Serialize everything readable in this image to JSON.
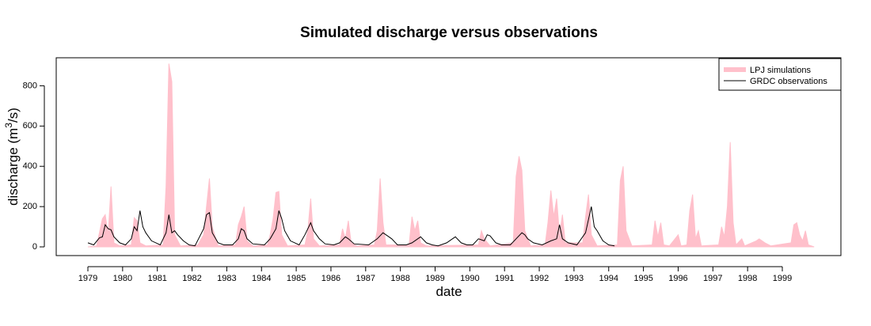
{
  "chart_data": {
    "type": "area",
    "title": "Simulated discharge versus observations",
    "xlabel": "date",
    "ylabel": "discharge (m³/s)",
    "xlim": [
      "1979-01",
      "1999-12"
    ],
    "ylim": [
      0,
      900
    ],
    "yticks": [
      0,
      200,
      400,
      600,
      800
    ],
    "xticks": [
      "1979",
      "1980",
      "1981",
      "1982",
      "1983",
      "1984",
      "1985",
      "1986",
      "1987",
      "1988",
      "1989",
      "1990",
      "1991",
      "1992",
      "1993",
      "1994",
      "1995",
      "1996",
      "1997",
      "1998",
      "1999"
    ],
    "grid": false,
    "legend_position": "top-right",
    "colors": {
      "simulations": "#ffc0cb",
      "observations": "#000000"
    },
    "series": [
      {
        "name": "LPJ simulations",
        "style": "filled area",
        "points": [
          [
            "1979-01",
            0
          ],
          [
            "1979-04",
            5
          ],
          [
            "1979-06",
            140
          ],
          [
            "1979-07",
            160
          ],
          [
            "1979-08",
            60
          ],
          [
            "1979-09",
            300
          ],
          [
            "1979-10",
            20
          ],
          [
            "1979-12",
            5
          ],
          [
            "1980-04",
            10
          ],
          [
            "1980-05",
            145
          ],
          [
            "1980-06",
            130
          ],
          [
            "1980-07",
            20
          ],
          [
            "1980-09",
            5
          ],
          [
            "1981-03",
            10
          ],
          [
            "1981-04",
            300
          ],
          [
            "1981-05",
            910
          ],
          [
            "1981-06",
            820
          ],
          [
            "1981-07",
            60
          ],
          [
            "1981-09",
            5
          ],
          [
            "1982-03",
            10
          ],
          [
            "1982-05",
            60
          ],
          [
            "1982-06",
            200
          ],
          [
            "1982-07",
            340
          ],
          [
            "1982-08",
            100
          ],
          [
            "1982-10",
            5
          ],
          [
            "1983-04",
            10
          ],
          [
            "1983-05",
            110
          ],
          [
            "1983-06",
            150
          ],
          [
            "1983-07",
            200
          ],
          [
            "1983-08",
            30
          ],
          [
            "1983-10",
            5
          ],
          [
            "1984-03",
            10
          ],
          [
            "1984-04",
            60
          ],
          [
            "1984-05",
            140
          ],
          [
            "1984-06",
            270
          ],
          [
            "1984-07",
            275
          ],
          [
            "1984-08",
            60
          ],
          [
            "1984-10",
            5
          ],
          [
            "1985-04",
            10
          ],
          [
            "1985-05",
            80
          ],
          [
            "1985-06",
            240
          ],
          [
            "1985-07",
            40
          ],
          [
            "1985-09",
            5
          ],
          [
            "1986-04",
            10
          ],
          [
            "1986-05",
            90
          ],
          [
            "1986-06",
            40
          ],
          [
            "1986-07",
            130
          ],
          [
            "1986-08",
            20
          ],
          [
            "1986-10",
            5
          ],
          [
            "1987-04",
            10
          ],
          [
            "1987-05",
            80
          ],
          [
            "1987-06",
            340
          ],
          [
            "1987-07",
            120
          ],
          [
            "1987-08",
            10
          ],
          [
            "1988-04",
            10
          ],
          [
            "1988-05",
            150
          ],
          [
            "1988-06",
            80
          ],
          [
            "1988-07",
            130
          ],
          [
            "1988-08",
            20
          ],
          [
            "1988-10",
            5
          ],
          [
            "1990-04",
            10
          ],
          [
            "1990-05",
            80
          ],
          [
            "1990-06",
            40
          ],
          [
            "1990-08",
            5
          ],
          [
            "1991-04",
            20
          ],
          [
            "1991-05",
            350
          ],
          [
            "1991-06",
            450
          ],
          [
            "1991-07",
            380
          ],
          [
            "1991-08",
            80
          ],
          [
            "1991-10",
            5
          ],
          [
            "1992-03",
            10
          ],
          [
            "1992-04",
            120
          ],
          [
            "1992-05",
            280
          ],
          [
            "1992-06",
            150
          ],
          [
            "1992-07",
            240
          ],
          [
            "1992-08",
            60
          ],
          [
            "1992-09",
            160
          ],
          [
            "1992-10",
            20
          ],
          [
            "1993-04",
            20
          ],
          [
            "1993-05",
            150
          ],
          [
            "1993-06",
            260
          ],
          [
            "1993-07",
            60
          ],
          [
            "1993-09",
            5
          ],
          [
            "1994-04",
            10
          ],
          [
            "1994-05",
            330
          ],
          [
            "1994-06",
            400
          ],
          [
            "1994-07",
            80
          ],
          [
            "1994-09",
            5
          ],
          [
            "1995-04",
            10
          ],
          [
            "1995-05",
            130
          ],
          [
            "1995-06",
            50
          ],
          [
            "1995-07",
            120
          ],
          [
            "1995-08",
            10
          ],
          [
            "1995-10",
            5
          ],
          [
            "1996-01",
            60
          ],
          [
            "1996-02",
            5
          ],
          [
            "1996-04",
            10
          ],
          [
            "1996-05",
            180
          ],
          [
            "1996-06",
            260
          ],
          [
            "1996-07",
            40
          ],
          [
            "1996-08",
            80
          ],
          [
            "1996-09",
            5
          ],
          [
            "1997-03",
            10
          ],
          [
            "1997-04",
            100
          ],
          [
            "1997-05",
            50
          ],
          [
            "1997-06",
            200
          ],
          [
            "1997-07",
            520
          ],
          [
            "1997-08",
            120
          ],
          [
            "1997-09",
            10
          ],
          [
            "1997-11",
            40
          ],
          [
            "1997-12",
            5
          ],
          [
            "1998-04",
            30
          ],
          [
            "1998-05",
            40
          ],
          [
            "1998-07",
            20
          ],
          [
            "1998-09",
            5
          ],
          [
            "1999-04",
            20
          ],
          [
            "1999-05",
            110
          ],
          [
            "1999-06",
            120
          ],
          [
            "1999-07",
            60
          ],
          [
            "1999-08",
            30
          ],
          [
            "1999-09",
            80
          ],
          [
            "1999-10",
            10
          ],
          [
            "1999-12",
            0
          ]
        ]
      },
      {
        "name": "GRDC observations",
        "style": "line",
        "points": [
          [
            "1979-01",
            20
          ],
          [
            "1979-03",
            10
          ],
          [
            "1979-05",
            45
          ],
          [
            "1979-06",
            50
          ],
          [
            "1979-07",
            110
          ],
          [
            "1979-08",
            90
          ],
          [
            "1979-09",
            85
          ],
          [
            "1979-10",
            50
          ],
          [
            "1979-12",
            20
          ],
          [
            "1980-02",
            10
          ],
          [
            "1980-04",
            40
          ],
          [
            "1980-05",
            100
          ],
          [
            "1980-06",
            80
          ],
          [
            "1980-07",
            180
          ],
          [
            "1980-08",
            100
          ],
          [
            "1980-09",
            70
          ],
          [
            "1980-11",
            30
          ],
          [
            "1981-02",
            10
          ],
          [
            "1981-04",
            70
          ],
          [
            "1981-05",
            160
          ],
          [
            "1981-06",
            70
          ],
          [
            "1981-07",
            80
          ],
          [
            "1981-08",
            60
          ],
          [
            "1981-10",
            30
          ],
          [
            "1981-12",
            10
          ],
          [
            "1982-02",
            5
          ],
          [
            "1982-05",
            90
          ],
          [
            "1982-06",
            160
          ],
          [
            "1982-07",
            170
          ],
          [
            "1982-08",
            70
          ],
          [
            "1982-10",
            20
          ],
          [
            "1982-12",
            10
          ],
          [
            "1983-03",
            10
          ],
          [
            "1983-05",
            40
          ],
          [
            "1983-06",
            90
          ],
          [
            "1983-07",
            80
          ],
          [
            "1983-08",
            40
          ],
          [
            "1983-10",
            15
          ],
          [
            "1984-02",
            10
          ],
          [
            "1984-04",
            40
          ],
          [
            "1984-06",
            90
          ],
          [
            "1984-07",
            180
          ],
          [
            "1984-08",
            140
          ],
          [
            "1984-09",
            80
          ],
          [
            "1984-11",
            30
          ],
          [
            "1985-02",
            10
          ],
          [
            "1985-04",
            60
          ],
          [
            "1985-06",
            120
          ],
          [
            "1985-07",
            80
          ],
          [
            "1985-09",
            40
          ],
          [
            "1985-11",
            15
          ],
          [
            "1986-02",
            10
          ],
          [
            "1986-04",
            20
          ],
          [
            "1986-06",
            50
          ],
          [
            "1986-07",
            40
          ],
          [
            "1986-09",
            15
          ],
          [
            "1987-02",
            10
          ],
          [
            "1987-05",
            40
          ],
          [
            "1987-07",
            70
          ],
          [
            "1987-08",
            60
          ],
          [
            "1987-10",
            40
          ],
          [
            "1987-12",
            10
          ],
          [
            "1988-03",
            10
          ],
          [
            "1988-05",
            20
          ],
          [
            "1988-07",
            40
          ],
          [
            "1988-08",
            50
          ],
          [
            "1988-10",
            20
          ],
          [
            "1988-12",
            10
          ],
          [
            "1989-02",
            5
          ],
          [
            "1989-05",
            20
          ],
          [
            "1989-07",
            40
          ],
          [
            "1989-08",
            50
          ],
          [
            "1989-10",
            20
          ],
          [
            "1989-12",
            10
          ],
          [
            "1990-02",
            10
          ],
          [
            "1990-04",
            40
          ],
          [
            "1990-06",
            30
          ],
          [
            "1990-07",
            60
          ],
          [
            "1990-08",
            55
          ],
          [
            "1990-10",
            20
          ],
          [
            "1990-12",
            10
          ],
          [
            "1991-03",
            10
          ],
          [
            "1991-05",
            40
          ],
          [
            "1991-07",
            70
          ],
          [
            "1991-08",
            60
          ],
          [
            "1991-09",
            40
          ],
          [
            "1991-11",
            20
          ],
          [
            "1992-02",
            10
          ],
          [
            "1992-05",
            30
          ],
          [
            "1992-07",
            40
          ],
          [
            "1992-08",
            110
          ],
          [
            "1992-09",
            40
          ],
          [
            "1992-11",
            20
          ],
          [
            "1993-02",
            10
          ],
          [
            "1993-05",
            70
          ],
          [
            "1993-07",
            200
          ],
          [
            "1993-08",
            100
          ],
          [
            "1993-09",
            80
          ],
          [
            "1993-11",
            30
          ],
          [
            "1994-01",
            10
          ],
          [
            "1994-03",
            5
          ]
        ]
      }
    ]
  }
}
